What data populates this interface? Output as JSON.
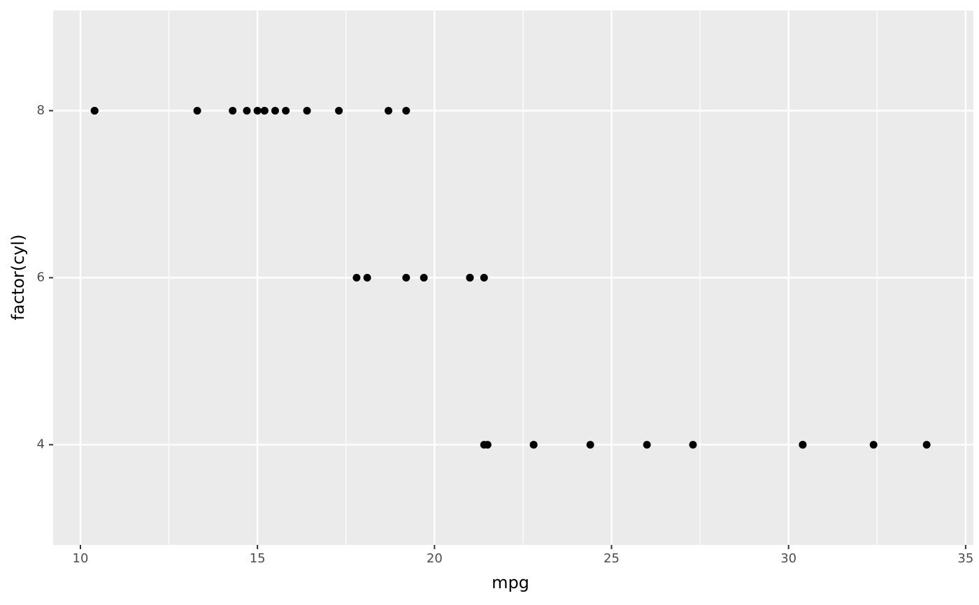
{
  "chart_data": {
    "type": "scatter",
    "x_label": "mpg",
    "y_label": "factor(cyl)",
    "x": [
      21.0,
      21.0,
      22.8,
      21.4,
      18.7,
      18.1,
      14.3,
      24.4,
      22.8,
      19.2,
      17.8,
      16.4,
      17.3,
      15.2,
      10.4,
      10.4,
      14.7,
      32.4,
      30.4,
      33.9,
      21.5,
      15.5,
      15.2,
      13.3,
      19.2,
      27.3,
      26.0,
      30.4,
      15.8,
      19.7,
      15.0,
      21.4
    ],
    "series": [
      {
        "color": "#000000",
        "values": [
          6,
          6,
          4,
          6,
          8,
          6,
          8,
          4,
          4,
          6,
          6,
          8,
          8,
          8,
          8,
          8,
          8,
          4,
          4,
          4,
          4,
          8,
          8,
          8,
          8,
          4,
          4,
          4,
          8,
          6,
          8,
          4
        ]
      }
    ],
    "xlim": [
      9.23,
      35.22
    ],
    "ylim": [
      2.8,
      9.2
    ],
    "xticks": [
      10,
      15,
      20,
      25,
      30,
      35
    ],
    "xminorticks": [
      12.5,
      17.5,
      22.5,
      27.5,
      32.5
    ],
    "yticks": [
      4,
      6,
      8
    ],
    "grid": true,
    "panel_color": "#ebebeb"
  }
}
